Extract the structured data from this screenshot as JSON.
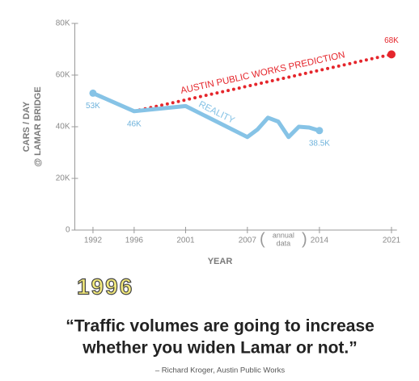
{
  "chart_data": {
    "type": "line",
    "y_label": [
      "CARS / DAY",
      "@ LAMAR BRIDGE"
    ],
    "x_label": "YEAR",
    "xlim": [
      1990,
      2022
    ],
    "xticks": [
      1992,
      1996,
      2001,
      2007,
      2014,
      2021
    ],
    "ylim": [
      0,
      80000
    ],
    "yticks": [
      0,
      {
        "value": 20000,
        "label": "20K"
      },
      {
        "value": 40000,
        "label": "40K"
      },
      {
        "value": 60000,
        "label": "60K"
      },
      {
        "value": 80000,
        "label": "80K"
      }
    ],
    "annotation": [
      "annual",
      "data"
    ],
    "series": [
      {
        "name": "REALITY",
        "color": "#86c3e6",
        "style": "solid",
        "x": [
          1992,
          1996,
          2001,
          2007,
          2008,
          2009,
          2010,
          2011,
          2012,
          2013,
          2014
        ],
        "values": [
          53000,
          46000,
          48000,
          36000,
          39000,
          43500,
          42000,
          36000,
          40000,
          39700,
          38500
        ],
        "value_labels": [
          "53K",
          "46K",
          null,
          null,
          null,
          null,
          null,
          null,
          null,
          null,
          "38.5K"
        ]
      },
      {
        "name": "AUSTIN PUBLIC WORKS PREDICTION",
        "color": "#e5262c",
        "style": "dotted",
        "x": [
          1996,
          2021
        ],
        "values": [
          46000,
          68000
        ],
        "value_labels": [
          null,
          "68K"
        ]
      }
    ]
  },
  "heading": "1996",
  "quote": [
    "“Traffic volumes are going to increase",
    "whether you widen Lamar or not.”"
  ],
  "attribution": "– Richard Kroger, Austin Public Works"
}
